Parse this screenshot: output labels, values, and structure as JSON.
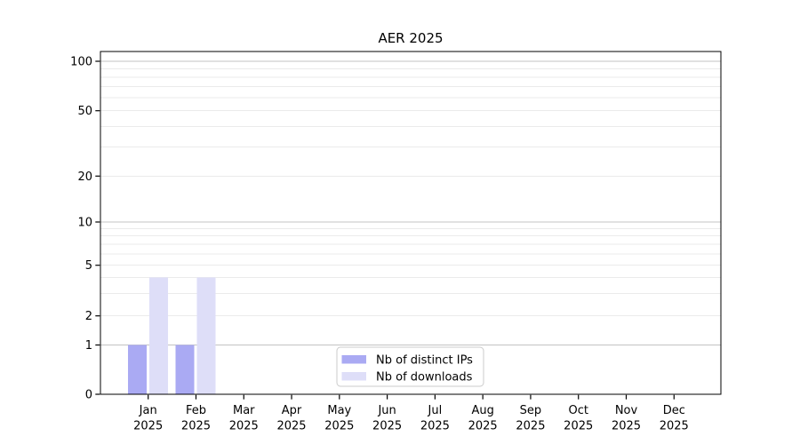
{
  "chart_data": {
    "type": "bar",
    "title": "AER 2025",
    "y_scale": "symlog",
    "ylim": [
      0,
      115
    ],
    "grid": "horizontal major+minor, no vertical",
    "legend_position": "inside-bottom-center",
    "y_ticks": [
      0,
      1,
      2,
      5,
      10,
      20,
      50,
      100
    ],
    "categories": [
      {
        "month": "Jan",
        "year": "2025"
      },
      {
        "month": "Feb",
        "year": "2025"
      },
      {
        "month": "Mar",
        "year": "2025"
      },
      {
        "month": "Apr",
        "year": "2025"
      },
      {
        "month": "May",
        "year": "2025"
      },
      {
        "month": "Jun",
        "year": "2025"
      },
      {
        "month": "Jul",
        "year": "2025"
      },
      {
        "month": "Aug",
        "year": "2025"
      },
      {
        "month": "Sep",
        "year": "2025"
      },
      {
        "month": "Oct",
        "year": "2025"
      },
      {
        "month": "Nov",
        "year": "2025"
      },
      {
        "month": "Dec",
        "year": "2025"
      }
    ],
    "series": [
      {
        "name": "Nb of distinct IPs",
        "color": "#aaaaf3",
        "values": [
          1,
          1,
          0,
          0,
          0,
          0,
          0,
          0,
          0,
          0,
          0,
          0
        ]
      },
      {
        "name": "Nb of downloads",
        "color": "#dedef8",
        "values": [
          4,
          4,
          0,
          0,
          0,
          0,
          0,
          0,
          0,
          0,
          0,
          0
        ]
      }
    ]
  },
  "colors": {
    "background": "#ffffff",
    "axis": "#000000",
    "major_grid": "#c3c3c3",
    "minor_grid": "#ebebeb",
    "legend_border": "#cbcbcb",
    "legend_fill": "#ffffff"
  }
}
